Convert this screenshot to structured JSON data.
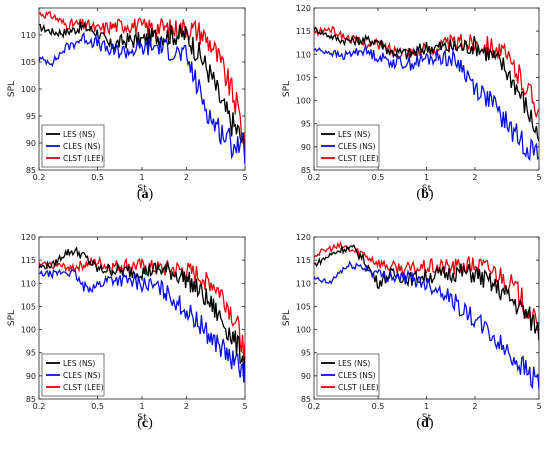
{
  "colors": {
    "les": "#000000",
    "cles": "#0a10e6",
    "clst": "#e8000b"
  },
  "chart_data": [
    {
      "type": "line",
      "panel_label": "a",
      "xlabel": "St",
      "ylabel": "SPL",
      "xscale": "log",
      "xlim": [
        0.2,
        5
      ],
      "ylim": [
        85,
        115
      ],
      "xticks": [
        0.2,
        0.5,
        1,
        2,
        5
      ],
      "xtick_labels": [
        "0.2",
        "0.5",
        "1",
        "2",
        "5"
      ],
      "yticks": [
        85,
        90,
        95,
        100,
        105,
        110,
        115
      ],
      "yticks_labels": [
        "85",
        "90",
        "95",
        "100",
        "105",
        "110",
        ""
      ],
      "legend_position": "bottom-left",
      "series": [
        {
          "name": "LES (NS)",
          "color": "#000000",
          "x": [
            0.2,
            0.25,
            0.3,
            0.4,
            0.5,
            0.6,
            0.8,
            1.0,
            1.3,
            1.6,
            2.0,
            2.5,
            3.0,
            3.5,
            4.0,
            4.5,
            5.0
          ],
          "y": [
            111.5,
            110.5,
            110.5,
            111.5,
            110.5,
            108,
            109,
            109,
            110,
            110,
            110,
            106,
            102,
            97,
            94,
            92,
            89
          ]
        },
        {
          "name": "CLES (NS)",
          "color": "#0a10e6",
          "x": [
            0.2,
            0.25,
            0.3,
            0.4,
            0.5,
            0.6,
            0.8,
            1.0,
            1.3,
            1.6,
            2.0,
            2.5,
            3.0,
            3.5,
            4.0,
            4.5,
            5.0
          ],
          "y": [
            105.5,
            105,
            107.5,
            109.5,
            108.5,
            107,
            107,
            107.5,
            108,
            107,
            106,
            99,
            94,
            92,
            90,
            90,
            88.5
          ]
        },
        {
          "name": "CLST (LEE)",
          "color": "#e8000b",
          "x": [
            0.2,
            0.25,
            0.3,
            0.4,
            0.5,
            0.6,
            0.8,
            1.0,
            1.3,
            1.6,
            2.0,
            2.5,
            3.0,
            3.5,
            4.0,
            4.5,
            5.0
          ],
          "y": [
            114,
            113.5,
            112,
            112,
            111,
            111.5,
            112,
            111.5,
            111.5,
            111,
            111.5,
            110.5,
            108,
            104,
            100,
            96,
            90
          ]
        }
      ]
    },
    {
      "type": "line",
      "panel_label": "b",
      "xlabel": "St",
      "ylabel": "SPL",
      "xscale": "log",
      "xlim": [
        0.2,
        5
      ],
      "ylim": [
        85,
        120
      ],
      "xticks": [
        0.2,
        0.5,
        1,
        2,
        5
      ],
      "xtick_labels": [
        "0.2",
        "0.5",
        "1",
        "2",
        "5"
      ],
      "yticks": [
        85,
        90,
        95,
        100,
        105,
        110,
        115,
        120
      ],
      "yticks_labels": [
        "85",
        "90",
        "95",
        "100",
        "105",
        "110",
        "115",
        "120"
      ],
      "legend_position": "bottom-left",
      "series": [
        {
          "name": "LES (NS)",
          "color": "#000000",
          "x": [
            0.2,
            0.25,
            0.3,
            0.4,
            0.5,
            0.6,
            0.8,
            1.0,
            1.3,
            1.6,
            2.0,
            2.5,
            3.0,
            3.5,
            4.0,
            4.5,
            5.0
          ],
          "y": [
            115.5,
            114,
            113,
            113,
            113,
            110.5,
            110,
            111.5,
            111.5,
            111.5,
            112,
            110,
            107.5,
            104,
            100,
            96,
            92
          ]
        },
        {
          "name": "CLES (NS)",
          "color": "#0a10e6",
          "x": [
            0.2,
            0.25,
            0.3,
            0.4,
            0.5,
            0.6,
            0.8,
            1.0,
            1.3,
            1.6,
            2.0,
            2.5,
            3.0,
            3.5,
            4.0,
            4.5,
            5.0
          ],
          "y": [
            111,
            110.5,
            109.5,
            111,
            109.5,
            108.5,
            108,
            109,
            109.5,
            108,
            103,
            100,
            96,
            93,
            91,
            89.5,
            88
          ]
        },
        {
          "name": "CLST (LEE)",
          "color": "#e8000b",
          "x": [
            0.2,
            0.25,
            0.3,
            0.4,
            0.5,
            0.6,
            0.8,
            1.0,
            1.3,
            1.6,
            2.0,
            2.5,
            3.0,
            3.5,
            4.0,
            4.5,
            5.0
          ],
          "y": [
            114.5,
            115.5,
            114,
            112.5,
            112,
            111,
            110.5,
            111,
            112,
            112.5,
            112.5,
            112,
            110,
            107,
            104,
            101,
            98
          ]
        }
      ]
    },
    {
      "type": "line",
      "panel_label": "c",
      "xlabel": "St",
      "ylabel": "SPL",
      "xscale": "log",
      "xlim": [
        0.2,
        5
      ],
      "ylim": [
        85,
        120
      ],
      "xticks": [
        0.2,
        0.5,
        1,
        2,
        5
      ],
      "xtick_labels": [
        "0.2",
        "0.5",
        "1",
        "2",
        "5"
      ],
      "yticks": [
        85,
        90,
        95,
        100,
        105,
        110,
        115,
        120
      ],
      "yticks_labels": [
        "85",
        "90",
        "95",
        "100",
        "105",
        "110",
        "115",
        "120"
      ],
      "legend_position": "bottom-left",
      "series": [
        {
          "name": "LES (NS)",
          "color": "#000000",
          "x": [
            0.2,
            0.25,
            0.3,
            0.35,
            0.4,
            0.5,
            0.6,
            0.8,
            1.0,
            1.3,
            1.6,
            2.0,
            2.5,
            3.0,
            3.5,
            4.0,
            4.5,
            5.0
          ],
          "y": [
            113.5,
            114,
            116.5,
            117,
            116,
            113,
            113,
            112.5,
            112.5,
            113,
            112.5,
            111,
            108,
            105,
            102,
            99,
            96,
            93
          ]
        },
        {
          "name": "CLES (NS)",
          "color": "#0a10e6",
          "x": [
            0.2,
            0.25,
            0.3,
            0.35,
            0.4,
            0.5,
            0.6,
            0.8,
            1.0,
            1.3,
            1.6,
            2.0,
            2.5,
            3.0,
            3.5,
            4.0,
            4.5,
            5.0
          ],
          "y": [
            112,
            112,
            112.5,
            112,
            109,
            109.5,
            111,
            110.5,
            110,
            109,
            107,
            104,
            101,
            98,
            96,
            93.5,
            92,
            91
          ]
        },
        {
          "name": "CLST (LEE)",
          "color": "#e8000b",
          "x": [
            0.2,
            0.25,
            0.3,
            0.35,
            0.4,
            0.5,
            0.6,
            0.8,
            1.0,
            1.3,
            1.6,
            2.0,
            2.5,
            3.0,
            3.5,
            4.0,
            4.5,
            5.0
          ],
          "y": [
            114,
            114,
            113.5,
            113.5,
            114,
            114.5,
            113.5,
            114,
            113.5,
            113,
            113,
            112.5,
            111.5,
            110,
            107.5,
            104,
            100,
            95
          ]
        }
      ]
    },
    {
      "type": "line",
      "panel_label": "d",
      "xlabel": "St",
      "ylabel": "SPL",
      "xscale": "log",
      "xlim": [
        0.2,
        5
      ],
      "ylim": [
        85,
        120
      ],
      "xticks": [
        0.2,
        0.5,
        1,
        2,
        5
      ],
      "xtick_labels": [
        "0.2",
        "0.5",
        "1",
        "2",
        "5"
      ],
      "yticks": [
        85,
        90,
        95,
        100,
        105,
        110,
        115,
        120
      ],
      "yticks_labels": [
        "85",
        "90",
        "95",
        "100",
        "105",
        "110",
        "115",
        "120"
      ],
      "legend_position": "bottom-left",
      "series": [
        {
          "name": "LES (NS)",
          "color": "#000000",
          "x": [
            0.2,
            0.25,
            0.3,
            0.35,
            0.4,
            0.5,
            0.6,
            0.8,
            1.0,
            1.3,
            1.6,
            2.0,
            2.5,
            3.0,
            3.5,
            4.0,
            4.5,
            5.0
          ],
          "y": [
            114,
            116,
            117.5,
            117.5,
            115.5,
            110,
            112,
            111,
            111.5,
            112,
            112.5,
            112,
            110,
            108,
            106,
            104,
            102,
            100
          ]
        },
        {
          "name": "CLES (NS)",
          "color": "#0a10e6",
          "x": [
            0.2,
            0.25,
            0.3,
            0.35,
            0.4,
            0.5,
            0.6,
            0.8,
            1.0,
            1.3,
            1.6,
            2.0,
            2.5,
            3.0,
            3.5,
            4.0,
            4.5,
            5.0
          ],
          "y": [
            111,
            110,
            113,
            114,
            113.5,
            112,
            111.5,
            111,
            110,
            108,
            105,
            102,
            99,
            96,
            94,
            92,
            90,
            89
          ]
        },
        {
          "name": "CLST (LEE)",
          "color": "#e8000b",
          "x": [
            0.2,
            0.25,
            0.3,
            0.35,
            0.4,
            0.5,
            0.6,
            0.8,
            1.0,
            1.3,
            1.6,
            2.0,
            2.5,
            3.0,
            3.5,
            4.0,
            4.5,
            5.0
          ],
          "y": [
            116,
            117.5,
            118,
            117,
            116.5,
            114.5,
            113.5,
            113,
            113.5,
            113.5,
            113.5,
            114,
            113,
            111.5,
            109,
            106,
            103,
            99
          ]
        }
      ]
    }
  ],
  "panel_labels": [
    "(a)",
    "(b)",
    "(c)",
    "(d)"
  ]
}
